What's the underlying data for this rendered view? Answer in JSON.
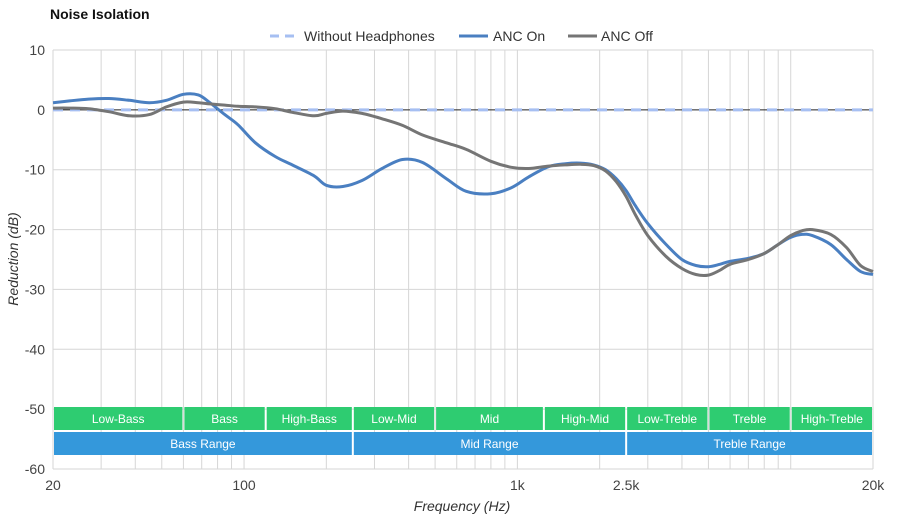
{
  "chart_data": {
    "type": "line",
    "title": "Noise Isolation",
    "xlabel": "Frequency (Hz)",
    "ylabel": "Reduction (dB)",
    "x_scale": "log",
    "xlim": [
      20,
      20000
    ],
    "ylim": [
      -60,
      10
    ],
    "x_ticks": [
      {
        "value": 20,
        "label": "20"
      },
      {
        "value": 100,
        "label": "100"
      },
      {
        "value": 1000,
        "label": "1k"
      },
      {
        "value": 2500,
        "label": "2.5k"
      },
      {
        "value": 20000,
        "label": "20k"
      }
    ],
    "y_ticks": [
      10,
      0,
      -10,
      -20,
      -30,
      -40,
      -50,
      -60
    ],
    "grid": true,
    "legend_position": "top-center",
    "series": [
      {
        "name": "Without Headphones",
        "color": "#a6bff2",
        "dashed": true,
        "x": [
          20,
          20000
        ],
        "y": [
          0,
          0
        ]
      },
      {
        "name": "ANC On",
        "color": "#4a7fc1",
        "dashed": false,
        "x": [
          20,
          23,
          27,
          32,
          38,
          45,
          52,
          60,
          68,
          75,
          85,
          95,
          110,
          130,
          150,
          180,
          200,
          230,
          270,
          320,
          380,
          450,
          550,
          650,
          800,
          950,
          1100,
          1300,
          1500,
          1700,
          1900,
          2100,
          2300,
          2500,
          2700,
          3000,
          3500,
          4000,
          4500,
          5000,
          5500,
          6000,
          7000,
          8000,
          9000,
          10000,
          11000,
          12000,
          14000,
          16000,
          18000,
          20000
        ],
        "y": [
          1.2,
          1.5,
          1.8,
          1.9,
          1.6,
          1.2,
          1.6,
          2.6,
          2.5,
          1.2,
          -0.8,
          -2.5,
          -5.5,
          -7.8,
          -9.2,
          -11.0,
          -12.6,
          -12.8,
          -11.8,
          -9.8,
          -8.3,
          -8.8,
          -11.5,
          -13.6,
          -14.0,
          -13.0,
          -11.2,
          -9.5,
          -9.0,
          -8.9,
          -9.2,
          -10.0,
          -11.5,
          -13.5,
          -16.0,
          -19.0,
          -22.5,
          -25.0,
          -26.0,
          -26.2,
          -25.8,
          -25.3,
          -24.8,
          -24.0,
          -22.5,
          -21.3,
          -20.8,
          -21.0,
          -22.5,
          -25.0,
          -27.0,
          -27.5
        ]
      },
      {
        "name": "ANC Off",
        "color": "#757575",
        "dashed": false,
        "x": [
          20,
          23,
          27,
          32,
          38,
          45,
          52,
          60,
          68,
          75,
          85,
          95,
          110,
          130,
          150,
          180,
          200,
          230,
          270,
          320,
          380,
          450,
          550,
          650,
          800,
          950,
          1100,
          1300,
          1500,
          1700,
          1900,
          2100,
          2300,
          2500,
          2700,
          3000,
          3500,
          4000,
          4500,
          5000,
          5500,
          6000,
          7000,
          8000,
          9000,
          10000,
          11000,
          12000,
          14000,
          16000,
          18000,
          20000
        ],
        "y": [
          0.3,
          0.3,
          0.2,
          -0.3,
          -1.0,
          -0.8,
          0.5,
          1.3,
          1.2,
          1.0,
          0.8,
          0.6,
          0.5,
          0.2,
          -0.4,
          -1.0,
          -0.6,
          -0.2,
          -0.6,
          -1.5,
          -2.6,
          -4.2,
          -5.5,
          -6.6,
          -8.6,
          -9.6,
          -9.8,
          -9.4,
          -9.2,
          -9.1,
          -9.3,
          -10.2,
          -12.0,
          -14.5,
          -17.5,
          -21.0,
          -24.5,
          -26.5,
          -27.5,
          -27.6,
          -26.8,
          -25.8,
          -25.0,
          -24.0,
          -22.5,
          -21.0,
          -20.2,
          -20.0,
          -20.8,
          -23.0,
          -26.0,
          -27.0
        ]
      }
    ],
    "range_bands": [
      {
        "label": "Low-Bass",
        "from": 20,
        "to": 60
      },
      {
        "label": "Bass",
        "from": 60,
        "to": 120
      },
      {
        "label": "High-Bass",
        "from": 120,
        "to": 250
      },
      {
        "label": "Low-Mid",
        "from": 250,
        "to": 500
      },
      {
        "label": "Mid",
        "from": 500,
        "to": 1250
      },
      {
        "label": "High-Mid",
        "from": 1250,
        "to": 2500
      },
      {
        "label": "Low-Treble",
        "from": 2500,
        "to": 5000
      },
      {
        "label": "Treble",
        "from": 5000,
        "to": 10000
      },
      {
        "label": "High-Treble",
        "from": 10000,
        "to": 20000
      }
    ],
    "range_groups": [
      {
        "label": "Bass Range",
        "from": 20,
        "to": 250
      },
      {
        "label": "Mid Range",
        "from": 250,
        "to": 2500
      },
      {
        "label": "Treble Range",
        "from": 2500,
        "to": 20000
      }
    ],
    "band_color": "#2ecc71",
    "group_color": "#3498db"
  }
}
